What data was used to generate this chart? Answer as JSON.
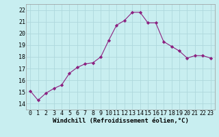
{
  "x": [
    0,
    1,
    2,
    3,
    4,
    5,
    6,
    7,
    8,
    9,
    10,
    11,
    12,
    13,
    14,
    15,
    16,
    17,
    18,
    19,
    20,
    21,
    22,
    23
  ],
  "y": [
    15.1,
    14.3,
    14.9,
    15.3,
    15.6,
    16.6,
    17.1,
    17.4,
    17.5,
    18.0,
    19.4,
    20.7,
    21.1,
    21.8,
    21.8,
    20.9,
    20.9,
    19.3,
    18.9,
    18.5,
    17.9,
    18.1,
    18.1,
    17.9
  ],
  "xlim": [
    -0.5,
    23.5
  ],
  "ylim": [
    13.5,
    22.5
  ],
  "yticks": [
    14,
    15,
    16,
    17,
    18,
    19,
    20,
    21,
    22
  ],
  "xticks": [
    0,
    1,
    2,
    3,
    4,
    5,
    6,
    7,
    8,
    9,
    10,
    11,
    12,
    13,
    14,
    15,
    16,
    17,
    18,
    19,
    20,
    21,
    22,
    23
  ],
  "xlabel": "Windchill (Refroidissement éolien,°C)",
  "line_color": "#8B2080",
  "marker": "D",
  "marker_size": 2.2,
  "bg_color": "#c8eef0",
  "grid_color": "#aed8dc",
  "xlabel_fontsize": 6.5,
  "tick_fontsize": 6.0
}
